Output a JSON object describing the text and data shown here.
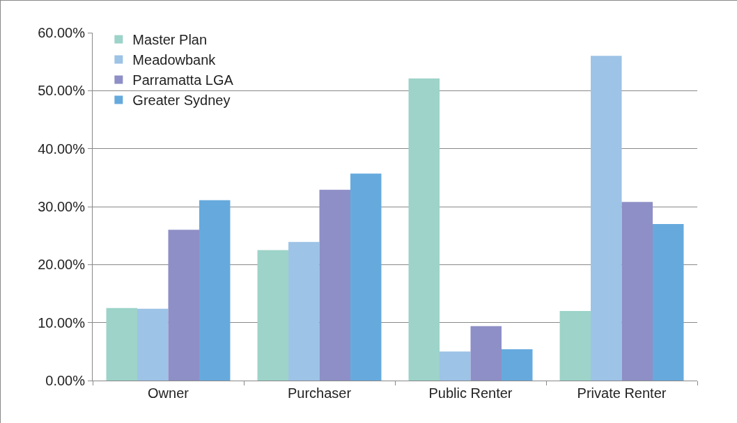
{
  "chart_data": {
    "type": "bar",
    "categories": [
      "Owner",
      "Purchaser",
      "Public Renter",
      "Private Renter"
    ],
    "series": [
      {
        "name": "Master Plan",
        "color": "#9dd3c8",
        "values": [
          12.5,
          22.5,
          52.1,
          12.0
        ]
      },
      {
        "name": "Meadowbank",
        "color": "#9dc3e6",
        "values": [
          12.4,
          23.9,
          5.0,
          56.0
        ]
      },
      {
        "name": "Parramatta LGA",
        "color": "#8e8fc6",
        "values": [
          26.0,
          32.9,
          9.4,
          30.8
        ]
      },
      {
        "name": "Greater Sydney",
        "color": "#66aadd",
        "values": [
          31.1,
          35.7,
          5.4,
          27.0
        ]
      }
    ],
    "ylim": [
      0,
      60
    ],
    "yticks": [
      {
        "value": 0,
        "label": "0.00%"
      },
      {
        "value": 10,
        "label": "10.00%"
      },
      {
        "value": 20,
        "label": "20.00%"
      },
      {
        "value": 30,
        "label": "30.00%"
      },
      {
        "value": 40,
        "label": "40.00%"
      },
      {
        "value": 50,
        "label": "50.00%"
      },
      {
        "value": 60,
        "label": "60.00%"
      }
    ],
    "grid": "y",
    "legend": "top left"
  }
}
